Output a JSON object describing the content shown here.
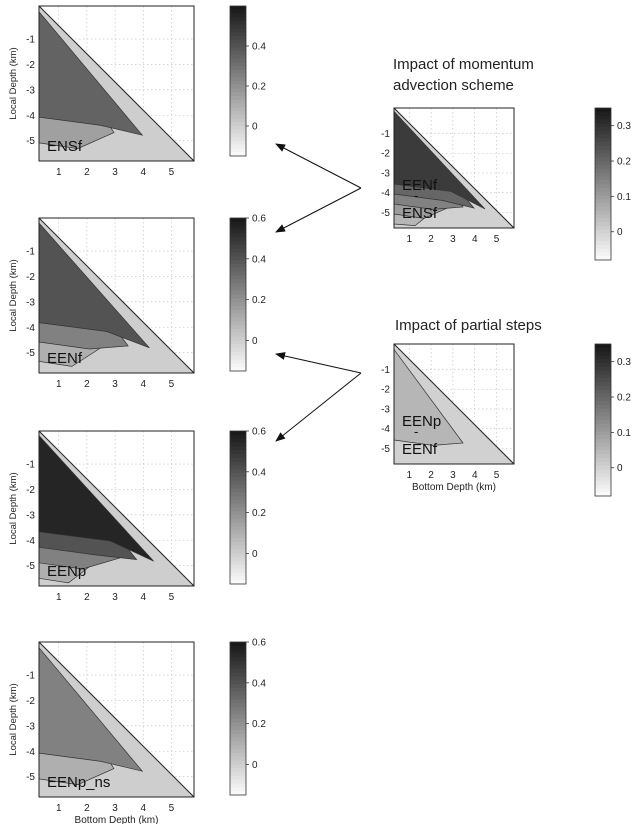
{
  "figure": {
    "title_momentum_line1": "Impact of momentum",
    "title_momentum_line2": "advection scheme",
    "title_partial": "Impact of partial steps"
  },
  "chart_data": [
    {
      "type": "heatmap",
      "label": "ENSf",
      "label_lines": [
        "ENSf"
      ],
      "xlabel": "",
      "ylabel": "Local Depth (km)",
      "xticks": [
        "1",
        "2",
        "3",
        "4",
        "5"
      ],
      "yticks": [
        "-1",
        "-2",
        "-3",
        "-4",
        "-5"
      ],
      "colorbar_ticks": [
        "0",
        "0.2",
        "0.4"
      ],
      "colorbar_values": [
        0,
        0.2,
        0.4
      ],
      "colorbar_range": [
        -0.15,
        0.6
      ],
      "xlim": [
        0.3,
        5.8
      ],
      "ylim": [
        -5.8,
        0.3
      ],
      "grid": true,
      "contour_levels": [
        0,
        0.1,
        0.2
      ],
      "fill_levels": [
        0.15,
        0.35
      ]
    },
    {
      "type": "heatmap",
      "label": "EENf",
      "label_lines": [
        "EENf"
      ],
      "xlabel": "",
      "ylabel": "Local Depth (km)",
      "xticks": [
        "1",
        "2",
        "3",
        "4",
        "5"
      ],
      "yticks": [
        "-1",
        "-2",
        "-3",
        "-4",
        "-5"
      ],
      "colorbar_ticks": [
        "0.6",
        "0.4",
        "0.2",
        "0"
      ],
      "colorbar_values": [
        0.6,
        0.4,
        0.2,
        0
      ],
      "colorbar_range": [
        -0.15,
        0.6
      ],
      "xlim": [
        0.3,
        5.8
      ],
      "ylim": [
        -5.8,
        0.3
      ],
      "grid": true,
      "contour_levels": [
        0,
        0.1,
        0.2,
        0.3
      ],
      "fill_levels": [
        0.1,
        0.25,
        0.4
      ]
    },
    {
      "type": "heatmap",
      "label": "EENp",
      "label_lines": [
        "EENp"
      ],
      "xlabel": "",
      "ylabel": "Local Depth (km)",
      "xticks": [
        "1",
        "2",
        "3",
        "4",
        "5"
      ],
      "yticks": [
        "-1",
        "-2",
        "-3",
        "-4",
        "-5"
      ],
      "colorbar_ticks": [
        "0.6",
        "0.4",
        "0.2",
        "0"
      ],
      "colorbar_values": [
        0.6,
        0.4,
        0.2,
        0
      ],
      "colorbar_range": [
        -0.15,
        0.6
      ],
      "xlim": [
        0.3,
        5.8
      ],
      "ylim": [
        -5.8,
        0.3
      ],
      "grid": true,
      "contour_levels": [
        0,
        0.1,
        0.2,
        0.3,
        0.4
      ],
      "fill_levels": [
        0.1,
        0.25,
        0.4,
        0.55
      ]
    },
    {
      "type": "heatmap",
      "label": "EENp_ns",
      "label_lines": [
        "EENp_ns"
      ],
      "xlabel": "Bottom Depth (km)",
      "ylabel": "Local Depth (km)",
      "xticks": [
        "1",
        "2",
        "3",
        "4",
        "5"
      ],
      "yticks": [
        "-1",
        "-2",
        "-3",
        "-4",
        "-5"
      ],
      "colorbar_ticks": [
        "0.6",
        "0.4",
        "0.2",
        "0"
      ],
      "colorbar_values": [
        0.6,
        0.4,
        0.2,
        0
      ],
      "colorbar_range": [
        -0.15,
        0.6
      ],
      "xlim": [
        0.3,
        5.8
      ],
      "ylim": [
        -5.8,
        0.3
      ],
      "grid": true,
      "contour_levels": [
        0,
        0.1,
        0.2
      ],
      "fill_levels": [
        0.1,
        0.25
      ]
    },
    {
      "type": "heatmap",
      "label": "EENf - ENSf",
      "label_lines": [
        "EENf",
        "-",
        "ENSf"
      ],
      "xlabel": "",
      "ylabel": "",
      "xticks": [
        "1",
        "2",
        "3",
        "4",
        "5"
      ],
      "yticks": [
        "-1",
        "-2",
        "-3",
        "-4",
        "-5"
      ],
      "colorbar_ticks": [
        "0.3",
        "0.2",
        "0.1",
        "0"
      ],
      "colorbar_values": [
        0.3,
        0.2,
        0.1,
        0
      ],
      "colorbar_range": [
        -0.08,
        0.35
      ],
      "xlim": [
        0.3,
        5.8
      ],
      "ylim": [
        -5.8,
        0.3
      ],
      "grid": true,
      "contour_levels": [
        0,
        0.05,
        0.1,
        0.15,
        0.2,
        0.25
      ],
      "fill_levels": [
        0.05,
        0.1,
        0.15,
        0.2,
        0.28
      ]
    },
    {
      "type": "heatmap",
      "label": "EENp - EENf",
      "label_lines": [
        "EENp",
        "-",
        "EENf"
      ],
      "xlabel": "Bottom Depth (km)",
      "ylabel": "",
      "xticks": [
        "1",
        "2",
        "3",
        "4",
        "5"
      ],
      "yticks": [
        "-1",
        "-2",
        "-3",
        "-4",
        "-5"
      ],
      "colorbar_ticks": [
        "0.3",
        "0.2",
        "0.1",
        "0"
      ],
      "colorbar_values": [
        0.3,
        0.2,
        0.1,
        0
      ],
      "colorbar_range": [
        -0.08,
        0.35
      ],
      "xlim": [
        0.3,
        5.8
      ],
      "ylim": [
        -5.8,
        0.3
      ],
      "grid": true,
      "contour_levels": [
        0,
        0.05,
        0.1
      ],
      "fill_levels": [
        0.05
      ]
    }
  ]
}
